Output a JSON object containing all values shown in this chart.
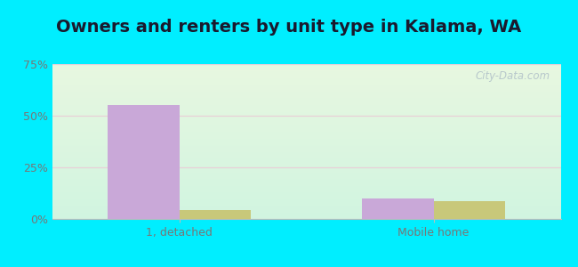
{
  "title": "Owners and renters by unit type in Kalama, WA",
  "categories": [
    "1, detached",
    "Mobile home"
  ],
  "owner_values": [
    55.0,
    10.0
  ],
  "renter_values": [
    4.5,
    8.5
  ],
  "owner_color": "#c9a8d8",
  "renter_color": "#c8c87a",
  "ylim": [
    0,
    75
  ],
  "yticks": [
    0,
    25,
    50,
    75
  ],
  "ytick_labels": [
    "0%",
    "25%",
    "50%",
    "75%"
  ],
  "bar_width": 0.28,
  "title_fontsize": 14,
  "tick_fontsize": 9,
  "legend_fontsize": 9.5,
  "outer_color": "#00eeff",
  "plot_bg_top": "#e8f5e2",
  "plot_bg_bottom": "#d0f0e0",
  "grid_color": "#e8d0d8",
  "watermark": "City-Data.com"
}
